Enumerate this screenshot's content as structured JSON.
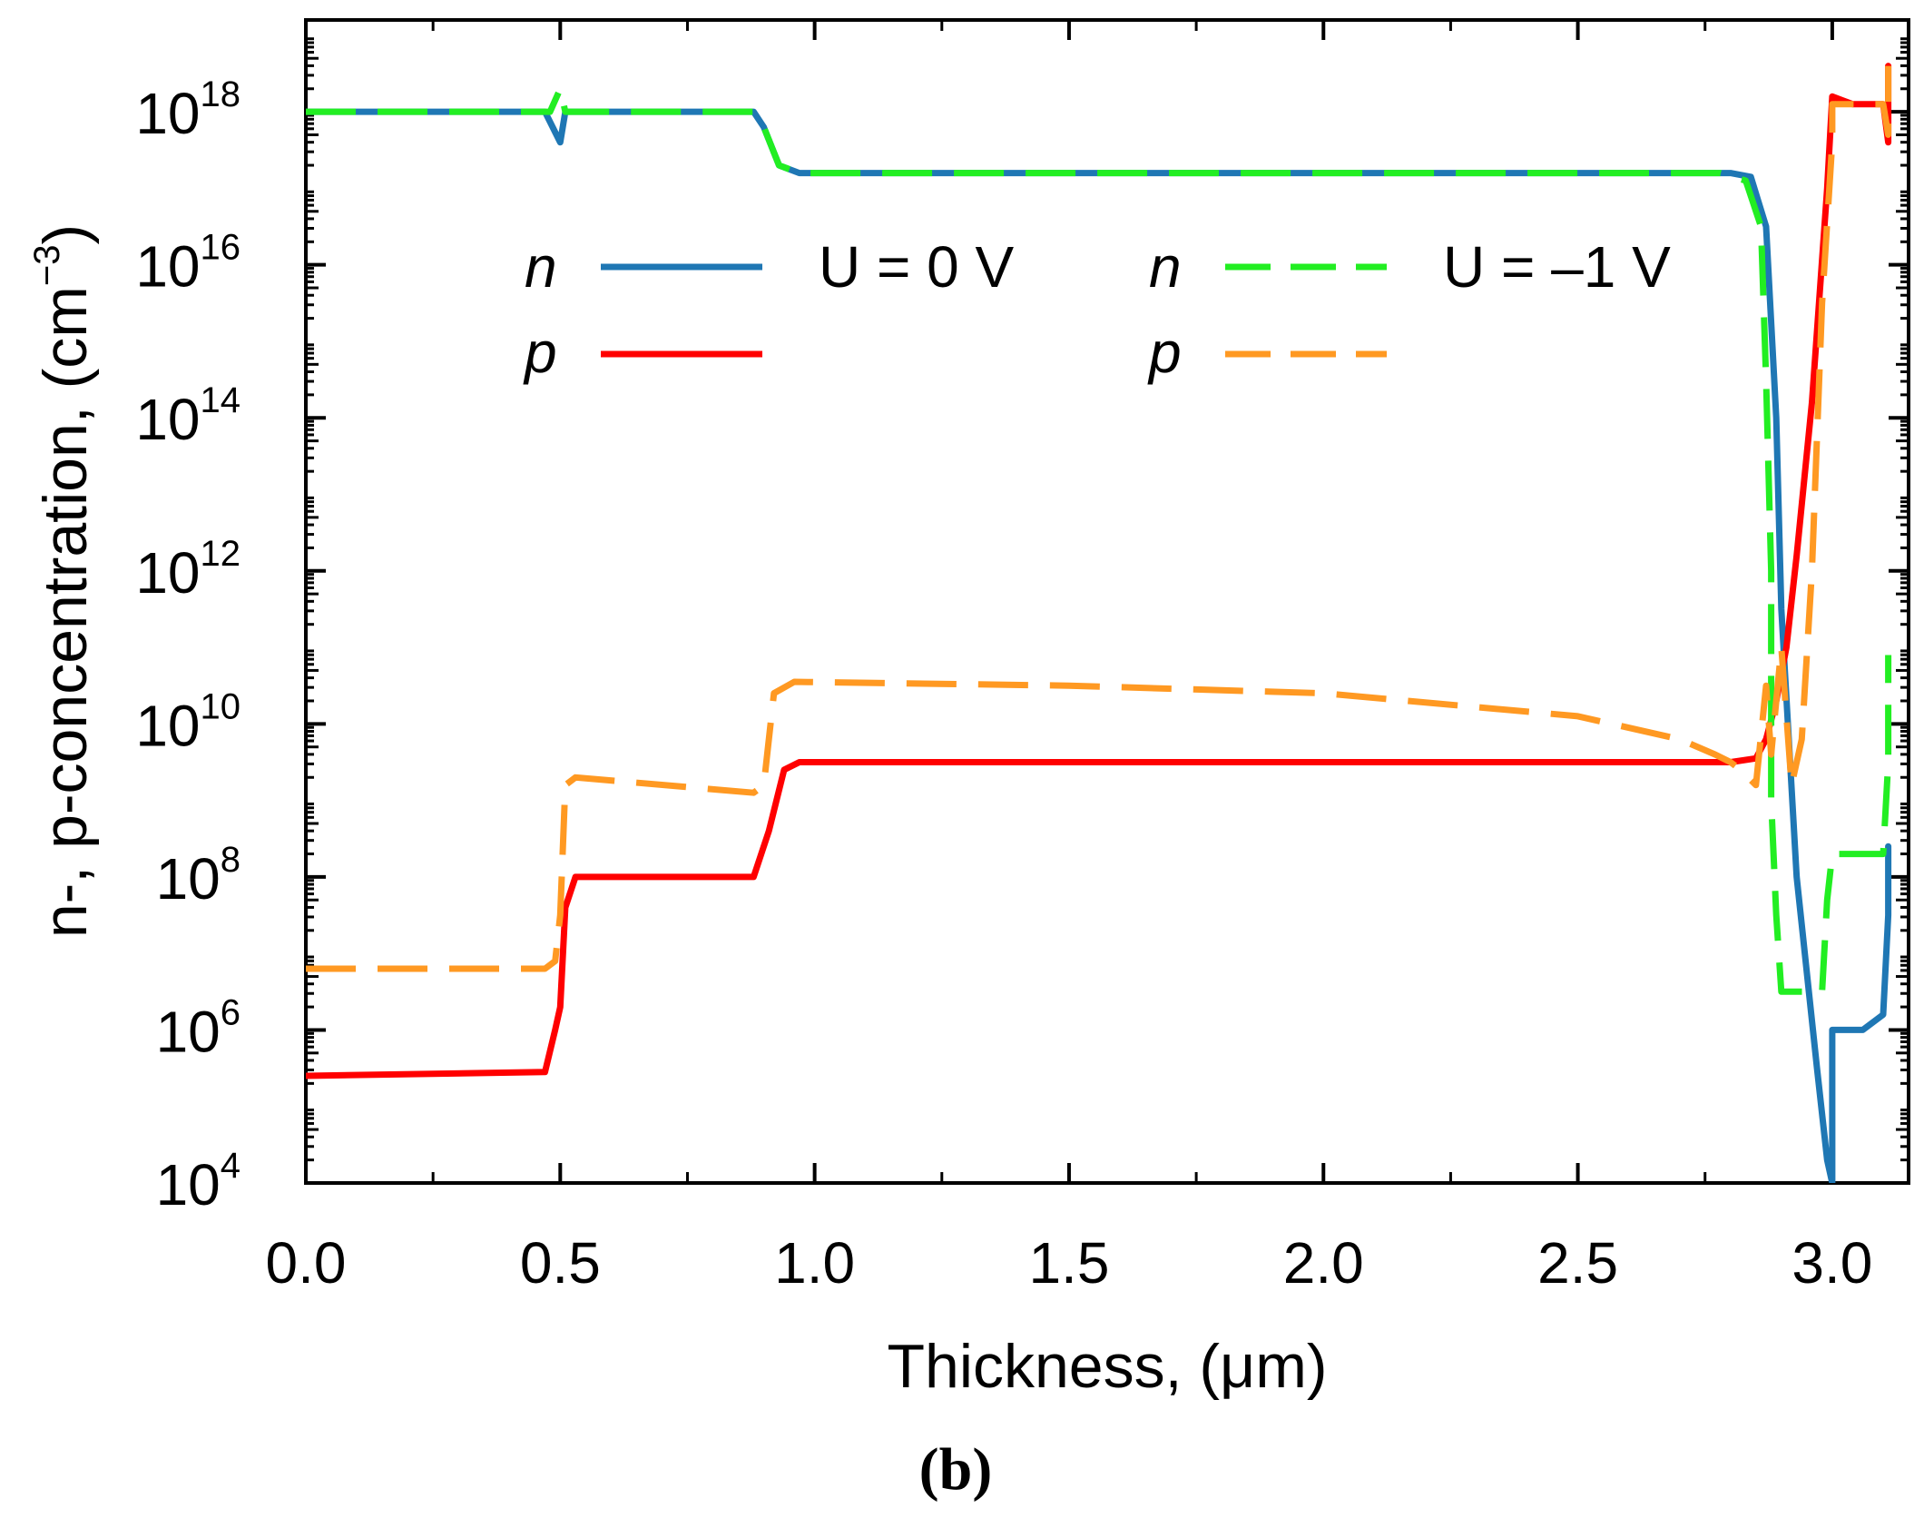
{
  "chart_data": {
    "type": "line",
    "panel_label": "(b)",
    "xlabel": "Thickness, (μm)",
    "ylabel": {
      "prefix": "n-, p-concentration, (cm",
      "exponent": "−3",
      "suffix": ")"
    },
    "xlim": [
      0,
      3.15
    ],
    "ylim_log10": [
      4,
      19.2
    ],
    "x_ticks": [
      "0.0",
      "0.5",
      "1.0",
      "1.5",
      "2.0",
      "2.5",
      "3.0"
    ],
    "x_tick_values": [
      0.0,
      0.5,
      1.0,
      1.5,
      2.0,
      2.5,
      3.0
    ],
    "y_ticks": [
      {
        "base": "10",
        "exp": "4",
        "value": 4
      },
      {
        "base": "10",
        "exp": "6",
        "value": 6
      },
      {
        "base": "10",
        "exp": "8",
        "value": 8
      },
      {
        "base": "10",
        "exp": "10",
        "value": 10
      },
      {
        "base": "10",
        "exp": "12",
        "value": 12
      },
      {
        "base": "10",
        "exp": "14",
        "value": 14
      },
      {
        "base": "10",
        "exp": "16",
        "value": 16
      },
      {
        "base": "10",
        "exp": "18",
        "value": 18
      }
    ],
    "legend": {
      "U0_label": "U = 0 V",
      "U1_label": "U = –1 V",
      "n_symbol": "n",
      "p_symbol": "p"
    },
    "series": [
      {
        "name": "n, U = 0 V",
        "color": "#1f77b4",
        "dashed": false,
        "points_log10": [
          [
            0,
            18
          ],
          [
            0.47,
            18
          ],
          [
            0.5,
            17.6
          ],
          [
            0.51,
            18
          ],
          [
            0.88,
            18
          ],
          [
            0.9,
            17.8
          ],
          [
            0.93,
            17.3
          ],
          [
            0.97,
            17.2
          ],
          [
            2.8,
            17.2
          ],
          [
            2.84,
            17.15
          ],
          [
            2.87,
            16.5
          ],
          [
            2.89,
            14
          ],
          [
            2.9,
            11.5
          ],
          [
            2.93,
            8
          ],
          [
            2.97,
            5.5
          ],
          [
            2.99,
            4.3
          ],
          [
            3.0,
            4
          ],
          [
            3.0,
            6
          ],
          [
            3.06,
            6
          ],
          [
            3.1,
            6.2
          ],
          [
            3.11,
            7.5
          ],
          [
            3.11,
            8.4
          ]
        ]
      },
      {
        "name": "p, U = 0 V",
        "color": "#ff0000",
        "dashed": false,
        "points_log10": [
          [
            0,
            5.4
          ],
          [
            0.47,
            5.45
          ],
          [
            0.49,
            6
          ],
          [
            0.5,
            6.3
          ],
          [
            0.51,
            7.6
          ],
          [
            0.53,
            8
          ],
          [
            0.88,
            8
          ],
          [
            0.91,
            8.6
          ],
          [
            0.94,
            9.4
          ],
          [
            0.97,
            9.5
          ],
          [
            2.8,
            9.5
          ],
          [
            2.85,
            9.55
          ],
          [
            2.87,
            9.8
          ],
          [
            2.89,
            10.3
          ],
          [
            2.91,
            11
          ],
          [
            2.93,
            12.2
          ],
          [
            2.96,
            14.2
          ],
          [
            2.99,
            17
          ],
          [
            3.0,
            18.2
          ],
          [
            3.04,
            18.1
          ],
          [
            3.1,
            18.1
          ],
          [
            3.11,
            17.6
          ],
          [
            3.11,
            18.6
          ]
        ]
      },
      {
        "name": "n, U = -1 V",
        "color": "#22ee22",
        "dashed": true,
        "points_log10": [
          [
            0,
            18
          ],
          [
            0.48,
            18
          ],
          [
            0.5,
            18.3
          ],
          [
            0.51,
            18
          ],
          [
            0.88,
            18
          ],
          [
            0.9,
            17.8
          ],
          [
            0.93,
            17.3
          ],
          [
            0.97,
            17.2
          ],
          [
            2.78,
            17.2
          ],
          [
            2.83,
            17.1
          ],
          [
            2.86,
            16.5
          ],
          [
            2.87,
            14.5
          ],
          [
            2.88,
            12
          ],
          [
            2.88,
            9
          ],
          [
            2.89,
            7.5
          ],
          [
            2.9,
            6.5
          ],
          [
            2.93,
            6.5
          ],
          [
            2.96,
            6.5
          ],
          [
            2.98,
            6.5
          ],
          [
            2.99,
            7.7
          ],
          [
            3.0,
            8.3
          ],
          [
            3.06,
            8.3
          ],
          [
            3.1,
            8.3
          ],
          [
            3.11,
            9.5
          ],
          [
            3.11,
            10.9
          ]
        ]
      },
      {
        "name": "p, U = -1 V",
        "color": "#ff9922",
        "dashed": true,
        "points_log10": [
          [
            0,
            6.8
          ],
          [
            0.47,
            6.8
          ],
          [
            0.49,
            6.9
          ],
          [
            0.5,
            7.5
          ],
          [
            0.51,
            9.2
          ],
          [
            0.53,
            9.3
          ],
          [
            0.88,
            9.1
          ],
          [
            0.9,
            9.2
          ],
          [
            0.92,
            10.4
          ],
          [
            0.96,
            10.55
          ],
          [
            1.5,
            10.5
          ],
          [
            2.0,
            10.4
          ],
          [
            2.5,
            10.1
          ],
          [
            2.7,
            9.8
          ],
          [
            2.77,
            9.6
          ],
          [
            2.8,
            9.5
          ],
          [
            2.82,
            9.4
          ],
          [
            2.85,
            9.2
          ],
          [
            2.87,
            10.5
          ],
          [
            2.88,
            9.6
          ],
          [
            2.9,
            11
          ],
          [
            2.92,
            9.2
          ],
          [
            2.94,
            9.8
          ],
          [
            2.96,
            12
          ],
          [
            2.98,
            15.5
          ],
          [
            3.0,
            17.6
          ],
          [
            3.0,
            18.1
          ],
          [
            3.08,
            18.1
          ],
          [
            3.1,
            18.1
          ],
          [
            3.11,
            17.7
          ],
          [
            3.11,
            18.6
          ]
        ]
      }
    ]
  }
}
